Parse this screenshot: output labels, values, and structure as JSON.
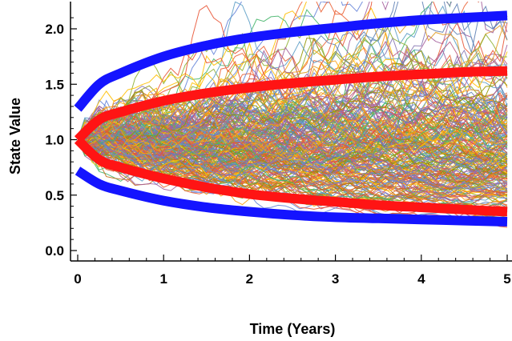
{
  "chart_data": {
    "type": "line",
    "title": "",
    "xlabel": "Time (Years)",
    "ylabel": "State Value",
    "xlim": [
      0,
      5
    ],
    "ylim": [
      0,
      2.2
    ],
    "x_ticks": [
      "0",
      "1",
      "2",
      "3",
      "4",
      "5"
    ],
    "y_ticks": [
      "0.0",
      "0.5",
      "1.0",
      "1.5",
      "2.0"
    ],
    "grid": false,
    "legend": "none",
    "initial_value": 1.0,
    "sample_paths": {
      "description": "dense bundle of multicolored simulated state paths starting at 1.0",
      "approx_min_at_t5": 0.1,
      "approx_max_at_t5": 2.1
    },
    "series": [
      {
        "color": "#ff1414",
        "x": [
          0,
          0.25,
          0.5,
          1,
          1.5,
          2,
          2.5,
          3,
          3.5,
          4,
          4.5,
          5
        ],
        "upper": [
          1.0,
          1.18,
          1.25,
          1.35,
          1.42,
          1.47,
          1.51,
          1.54,
          1.57,
          1.59,
          1.61,
          1.62
        ],
        "lower": [
          1.0,
          0.82,
          0.75,
          0.65,
          0.57,
          0.51,
          0.47,
          0.44,
          0.41,
          0.39,
          0.37,
          0.35
        ]
      },
      {
        "color": "#1414ff",
        "x": [
          0,
          0.25,
          0.5,
          1,
          1.5,
          2,
          2.5,
          3,
          3.5,
          4,
          4.5,
          5
        ],
        "upper": [
          1.28,
          1.5,
          1.6,
          1.75,
          1.85,
          1.92,
          1.97,
          2.01,
          2.05,
          2.08,
          2.1,
          2.12
        ],
        "lower": [
          0.72,
          0.6,
          0.54,
          0.45,
          0.39,
          0.35,
          0.32,
          0.3,
          0.29,
          0.28,
          0.27,
          0.26
        ]
      }
    ],
    "colors": {
      "paths": [
        "#5e81b5",
        "#e19c24",
        "#8fb032",
        "#eb6235",
        "#8778b3",
        "#c56e1a",
        "#5d9ec7",
        "#ffbf00",
        "#a5609d",
        "#929600",
        "#e95536",
        "#6685d9",
        "#f89f13",
        "#bc5b80",
        "#47b66d"
      ]
    }
  }
}
